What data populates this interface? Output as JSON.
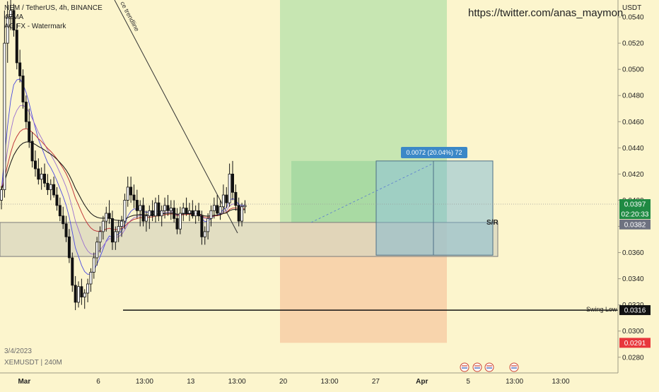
{
  "header": {
    "symbol_line": "NEM / TetherUS, 4h, BINANCE",
    "indicator_1": "4EMA",
    "indicator_2": "AG FX - Watermark"
  },
  "watermark_url": "https://twitter.com/anas_maymon",
  "footer": {
    "date_stamp": "3/4/2023",
    "symbol_stamp": "XEMUSDT | 240M"
  },
  "annotations": {
    "trendline_label": "ce trendline",
    "sr_label": "S/R",
    "swing_low_label": "Swing Low",
    "measure_label": "0.0072 (20.04%) 72"
  },
  "price_axis": {
    "unit": "USDT",
    "badges": {
      "last_price": "0.0397",
      "countdown": "02:20:33",
      "sr_level": "0.0382",
      "swing_low": "0.0316",
      "stop": "0.0291"
    }
  },
  "colors": {
    "background": "#fcf5cd",
    "up_candle": "#ffffff",
    "down_candle": "#111111",
    "target_zone": "#b6e0a8",
    "stop_zone": "#f7c8a0",
    "sr_box": "#d9d6be",
    "measure_box": "#6fb4d8",
    "ema_fast": "#4a4ae0",
    "ema_mid": "#9a6fd0",
    "ema_slow": "#c0393b",
    "ema_slowest": "#111111",
    "badge_green": "#1f8a43",
    "badge_gray": "#6e7280",
    "badge_red": "#e8373c",
    "badge_black": "#111111"
  },
  "chart_data": {
    "type": "candlestick",
    "symbol": "NEM / TetherUS",
    "interval": "4h",
    "exchange": "BINANCE",
    "y_range": [
      0.0268,
      0.0553
    ],
    "y_ticks": [
      "0.0540",
      "0.0520",
      "0.0500",
      "0.0480",
      "0.0460",
      "0.0440",
      "0.0420",
      "0.0400",
      "0.0380",
      "0.0360",
      "0.0340",
      "0.0320",
      "0.0300",
      "0.0280"
    ],
    "x_ticks": [
      {
        "label": "Mar",
        "bar": 1
      },
      {
        "label": "6",
        "bar": 25
      },
      {
        "label": "13:00",
        "bar": 40
      },
      {
        "label": "13",
        "bar": 55
      },
      {
        "label": "13:00",
        "bar": 70
      },
      {
        "label": "20",
        "bar": 85
      },
      {
        "label": "13:00",
        "bar": 100
      },
      {
        "label": "27",
        "bar": 115
      },
      {
        "label": "Apr",
        "bar": 130
      },
      {
        "label": "5",
        "bar": 145
      },
      {
        "label": "13:00",
        "bar": 160
      },
      {
        "label": "13:00",
        "bar": 175
      }
    ],
    "bars_visible": 197,
    "ohlc": [
      [
        0.04,
        0.0411,
        0.0393,
        0.0408
      ],
      [
        0.0408,
        0.0545,
        0.0402,
        0.052
      ],
      [
        0.052,
        0.0552,
        0.0505,
        0.054
      ],
      [
        0.054,
        0.0553,
        0.053,
        0.0545
      ],
      [
        0.0545,
        0.055,
        0.0525,
        0.053
      ],
      [
        0.053,
        0.0535,
        0.05,
        0.0505
      ],
      [
        0.0505,
        0.0515,
        0.049,
        0.0495
      ],
      [
        0.0495,
        0.05,
        0.047,
        0.0475
      ],
      [
        0.0475,
        0.048,
        0.0455,
        0.046
      ],
      [
        0.046,
        0.047,
        0.044,
        0.0445
      ],
      [
        0.0445,
        0.0452,
        0.0425,
        0.043
      ],
      [
        0.043,
        0.0438,
        0.0418,
        0.0424
      ],
      [
        0.0424,
        0.0432,
        0.0412,
        0.0416
      ],
      [
        0.0416,
        0.0425,
        0.0408,
        0.042
      ],
      [
        0.042,
        0.0428,
        0.041,
        0.0413
      ],
      [
        0.0413,
        0.042,
        0.0404,
        0.0408
      ],
      [
        0.0408,
        0.0416,
        0.04,
        0.0412
      ],
      [
        0.0412,
        0.0418,
        0.0402,
        0.0404
      ],
      [
        0.0404,
        0.041,
        0.0392,
        0.0396
      ],
      [
        0.0396,
        0.0402,
        0.0384,
        0.0388
      ],
      [
        0.0388,
        0.0395,
        0.0378,
        0.0382
      ],
      [
        0.0382,
        0.0388,
        0.0368,
        0.0372
      ],
      [
        0.0372,
        0.0378,
        0.0352,
        0.0356
      ],
      [
        0.0356,
        0.036,
        0.033,
        0.0335
      ],
      [
        0.0335,
        0.0342,
        0.0316,
        0.0322
      ],
      [
        0.0322,
        0.0338,
        0.0318,
        0.0334
      ],
      [
        0.0334,
        0.034,
        0.032,
        0.0326
      ],
      [
        0.0326,
        0.0332,
        0.0317,
        0.0329
      ],
      [
        0.0329,
        0.034,
        0.0322,
        0.0336
      ],
      [
        0.0336,
        0.0348,
        0.033,
        0.0345
      ],
      [
        0.0345,
        0.036,
        0.034,
        0.0356
      ],
      [
        0.0356,
        0.0372,
        0.035,
        0.0368
      ],
      [
        0.0368,
        0.038,
        0.036,
        0.0376
      ],
      [
        0.0376,
        0.0388,
        0.037,
        0.0384
      ],
      [
        0.0384,
        0.0395,
        0.0376,
        0.039
      ],
      [
        0.039,
        0.04,
        0.0382,
        0.0386
      ],
      [
        0.0386,
        0.0392,
        0.0362,
        0.0368
      ],
      [
        0.0368,
        0.038,
        0.0362,
        0.0376
      ],
      [
        0.0376,
        0.0385,
        0.0368,
        0.038
      ],
      [
        0.038,
        0.0388,
        0.0372,
        0.0384
      ],
      [
        0.0384,
        0.0405,
        0.0378,
        0.04
      ],
      [
        0.04,
        0.0418,
        0.0395,
        0.041
      ],
      [
        0.041,
        0.0418,
        0.0398,
        0.0404
      ],
      [
        0.0404,
        0.0412,
        0.0394,
        0.04
      ],
      [
        0.04,
        0.0408,
        0.0386,
        0.0392
      ],
      [
        0.0392,
        0.04,
        0.038,
        0.0396
      ],
      [
        0.0396,
        0.0402,
        0.038,
        0.0384
      ],
      [
        0.0384,
        0.0392,
        0.0376,
        0.0388
      ],
      [
        0.0388,
        0.0396,
        0.0378,
        0.0392
      ],
      [
        0.0392,
        0.04,
        0.0384,
        0.0388
      ],
      [
        0.0388,
        0.0402,
        0.0383,
        0.0398
      ],
      [
        0.0398,
        0.0404,
        0.0384,
        0.0388
      ],
      [
        0.0388,
        0.0396,
        0.038,
        0.0392
      ],
      [
        0.0392,
        0.0402,
        0.0386,
        0.0396
      ],
      [
        0.0396,
        0.0404,
        0.0388,
        0.0392
      ],
      [
        0.0392,
        0.04,
        0.0385,
        0.0394
      ],
      [
        0.0394,
        0.04,
        0.0383,
        0.0386
      ],
      [
        0.0386,
        0.0394,
        0.0374,
        0.0378
      ],
      [
        0.0378,
        0.0395,
        0.0374,
        0.039
      ],
      [
        0.039,
        0.0398,
        0.0384,
        0.0394
      ],
      [
        0.0394,
        0.0402,
        0.0388,
        0.039
      ],
      [
        0.039,
        0.0398,
        0.0384,
        0.0392
      ],
      [
        0.0392,
        0.04,
        0.0386,
        0.0388
      ],
      [
        0.0388,
        0.0396,
        0.0382,
        0.0392
      ],
      [
        0.0392,
        0.0398,
        0.0384,
        0.0388
      ],
      [
        0.0388,
        0.0392,
        0.0366,
        0.0372
      ],
      [
        0.0372,
        0.038,
        0.0366,
        0.0376
      ],
      [
        0.0376,
        0.039,
        0.037,
        0.0386
      ],
      [
        0.0386,
        0.0396,
        0.038,
        0.0392
      ],
      [
        0.0392,
        0.0402,
        0.0386,
        0.0396
      ],
      [
        0.0396,
        0.0404,
        0.0388,
        0.039
      ],
      [
        0.039,
        0.04,
        0.0385,
        0.0395
      ],
      [
        0.0395,
        0.0412,
        0.039,
        0.0404
      ],
      [
        0.0404,
        0.041,
        0.0394,
        0.0398
      ],
      [
        0.0398,
        0.0428,
        0.0395,
        0.042
      ],
      [
        0.042,
        0.043,
        0.04,
        0.0406
      ],
      [
        0.0406,
        0.0412,
        0.0392,
        0.0396
      ],
      [
        0.0396,
        0.0402,
        0.038,
        0.0384
      ],
      [
        0.0384,
        0.0398,
        0.038,
        0.0395
      ],
      [
        0.0395,
        0.04,
        0.039,
        0.0396
      ]
    ],
    "series": [
      {
        "name": "EMA (fast)",
        "color": "#4a4ae0"
      },
      {
        "name": "EMA (mid)",
        "color": "#9a6fd0"
      },
      {
        "name": "EMA (slow)",
        "color": "#c0393b"
      },
      {
        "name": "EMA (slowest)",
        "color": "#111111"
      }
    ],
    "zones": {
      "support_resistance": [
        0.0357,
        0.0383
      ],
      "position_entry": 0.0383,
      "position_target": 0.0555,
      "position_stop": 0.0291,
      "measure_range": [
        0.0358,
        0.043
      ],
      "measure_change": "0.0072 (20.04%)",
      "swing_low": 0.0316,
      "last_price": 0.0397
    }
  }
}
